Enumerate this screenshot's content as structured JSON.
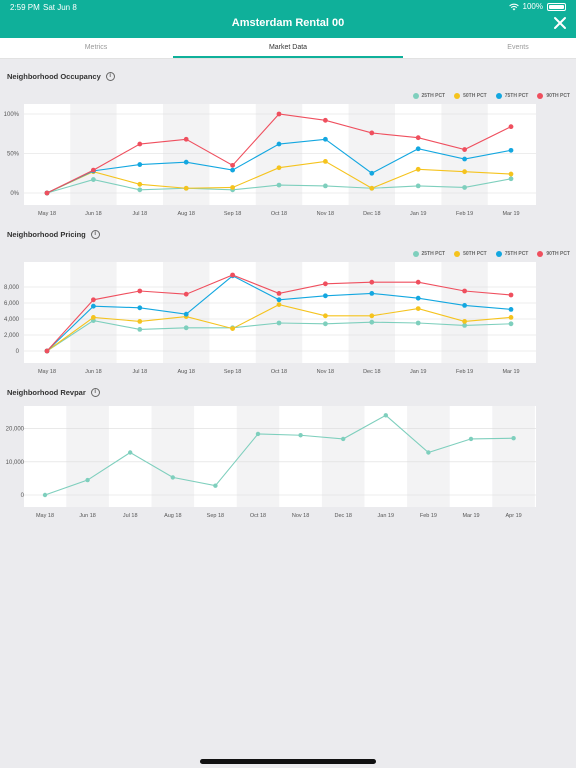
{
  "status_bar": {
    "time": "2:59 PM",
    "date": "Sat Jun 8",
    "battery": "100%"
  },
  "header": {
    "title": "Amsterdam Rental 00"
  },
  "tabs": [
    {
      "label": "Metrics",
      "active": false
    },
    {
      "label": "Market Data",
      "active": true
    },
    {
      "label": "Events",
      "active": false
    }
  ],
  "colors": {
    "accent": "#0fb09a",
    "p25": "#7ecfbd",
    "p50": "#f5c31d",
    "p75": "#13a7e0",
    "p90": "#ef4f5e"
  },
  "chart_data": [
    {
      "type": "line",
      "title": "Neighborhood Occupancy",
      "categories": [
        "May 18",
        "Jun 18",
        "Jul 18",
        "Aug 18",
        "Sep 18",
        "Oct 18",
        "Nov 18",
        "Dec 18",
        "Jan 19",
        "Feb 19",
        "Mar 19"
      ],
      "ytick_labels": [
        "100%",
        "50%",
        "0%"
      ],
      "ylim": [
        0,
        100
      ],
      "yticks": [
        0,
        50,
        100
      ],
      "legend": "top-right",
      "series": [
        {
          "name": "25TH PCT",
          "color": "#7ecfbd",
          "values": [
            0,
            17,
            4,
            6,
            4,
            10,
            9,
            6,
            9,
            7,
            18
          ]
        },
        {
          "name": "50TH PCT",
          "color": "#f5c31d",
          "values": [
            0,
            27,
            11,
            6,
            7,
            32,
            40,
            6,
            30,
            27,
            24
          ]
        },
        {
          "name": "75TH PCT",
          "color": "#13a7e0",
          "values": [
            0,
            28,
            36,
            39,
            29,
            62,
            68,
            25,
            56,
            43,
            54
          ]
        },
        {
          "name": "90TH PCT",
          "color": "#ef4f5e",
          "values": [
            0,
            29,
            62,
            68,
            35,
            100,
            92,
            76,
            70,
            55,
            84
          ]
        }
      ]
    },
    {
      "type": "line",
      "title": "Neighborhood Pricing",
      "categories": [
        "May 18",
        "Jun 18",
        "Jul 18",
        "Aug 18",
        "Sep 18",
        "Oct 18",
        "Nov 18",
        "Dec 18",
        "Jan 19",
        "Feb 19",
        "Mar 19"
      ],
      "ytick_labels": [
        "8,000",
        "6,000",
        "4,000",
        "2,000",
        "0"
      ],
      "ylim": [
        0,
        10000
      ],
      "yticks": [
        0,
        2000,
        4000,
        6000,
        8000
      ],
      "legend": "top-right",
      "series": [
        {
          "name": "25TH PCT",
          "color": "#7ecfbd",
          "values": [
            0,
            3800,
            2700,
            2900,
            2900,
            3500,
            3400,
            3600,
            3500,
            3200,
            3400
          ]
        },
        {
          "name": "50TH PCT",
          "color": "#f5c31d",
          "values": [
            0,
            4200,
            3700,
            4300,
            2800,
            5800,
            4400,
            4400,
            5300,
            3700,
            4200
          ]
        },
        {
          "name": "75TH PCT",
          "color": "#13a7e0",
          "values": [
            0,
            5600,
            5400,
            4600,
            9400,
            6400,
            6900,
            7200,
            6600,
            5700,
            5200
          ]
        },
        {
          "name": "90TH PCT",
          "color": "#ef4f5e",
          "values": [
            0,
            6400,
            7500,
            7100,
            9500,
            7200,
            8400,
            8600,
            8600,
            7500,
            7000
          ]
        }
      ]
    },
    {
      "type": "line",
      "title": "Neighborhood Revpar",
      "categories": [
        "May 18",
        "Jun 18",
        "Jul 18",
        "Aug 18",
        "Sep 18",
        "Oct 18",
        "Nov 18",
        "Dec 18",
        "Jan 19",
        "Feb 19",
        "Mar 19",
        "Apr 19"
      ],
      "ytick_labels": [
        "20,000",
        "10,000",
        "0"
      ],
      "ylim": [
        0,
        25000
      ],
      "yticks": [
        0,
        10000,
        20000
      ],
      "series": [
        {
          "color": "#7ecfbd",
          "values": [
            0,
            4500,
            12800,
            5300,
            2800,
            18400,
            18000,
            16900,
            24000,
            12800,
            16900,
            17100
          ]
        }
      ]
    }
  ]
}
